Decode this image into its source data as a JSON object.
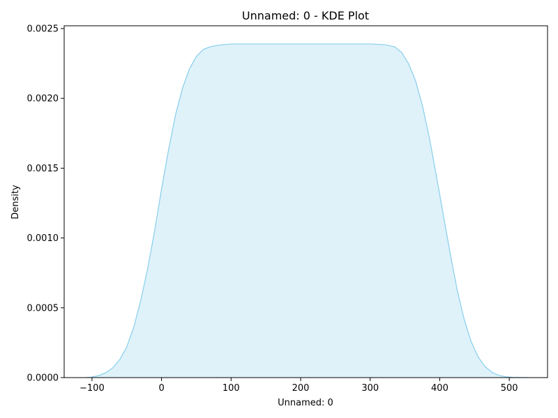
{
  "chart_data": {
    "type": "area",
    "title": "Unnamed: 0 - KDE Plot",
    "xlabel": "Unnamed: 0",
    "ylabel": "Density",
    "xlim": [
      -140,
      555
    ],
    "ylim": [
      0,
      0.00252
    ],
    "xticks": [
      -100,
      0,
      100,
      200,
      300,
      400,
      500
    ],
    "yticks": [
      0.0,
      0.0005,
      0.001,
      0.0015,
      0.002,
      0.0025
    ],
    "ytick_labels": [
      "0.0000",
      "0.0005",
      "0.0010",
      "0.0015",
      "0.0020",
      "0.0025"
    ],
    "grid": false,
    "legend": "none",
    "series": [
      {
        "x": [
          -108,
          -100,
          -90,
          -80,
          -70,
          -60,
          -50,
          -40,
          -30,
          -20,
          -10,
          0,
          10,
          20,
          30,
          40,
          50,
          60,
          70,
          80,
          90,
          100,
          120,
          150,
          200,
          250,
          300,
          320,
          335,
          345,
          355,
          365,
          375,
          385,
          395,
          405,
          415,
          425,
          435,
          445,
          455,
          465,
          475,
          485,
          495,
          505,
          515,
          527
        ],
        "y": [
          0.0,
          4e-06,
          1.5e-05,
          3.5e-05,
          7e-05,
          0.00013,
          0.00022,
          0.00036,
          0.00055,
          0.00078,
          0.00105,
          0.00135,
          0.00163,
          0.00188,
          0.00207,
          0.00221,
          0.0023,
          0.00235,
          0.00237,
          0.00238,
          0.002385,
          0.00239,
          0.00239,
          0.00239,
          0.00239,
          0.00239,
          0.00239,
          0.002385,
          0.00237,
          0.00233,
          0.00225,
          0.00213,
          0.00195,
          0.00172,
          0.00145,
          0.00117,
          0.00089,
          0.00063,
          0.00042,
          0.00026,
          0.00015,
          8e-05,
          3.8e-05,
          1.6e-05,
          6e-06,
          2e-06,
          1e-06,
          0.0
        ]
      }
    ],
    "colors": {
      "line": "#87ceeb",
      "fill": "#87ceeb",
      "fill_opacity": 0.27,
      "axes": "#000000"
    }
  }
}
